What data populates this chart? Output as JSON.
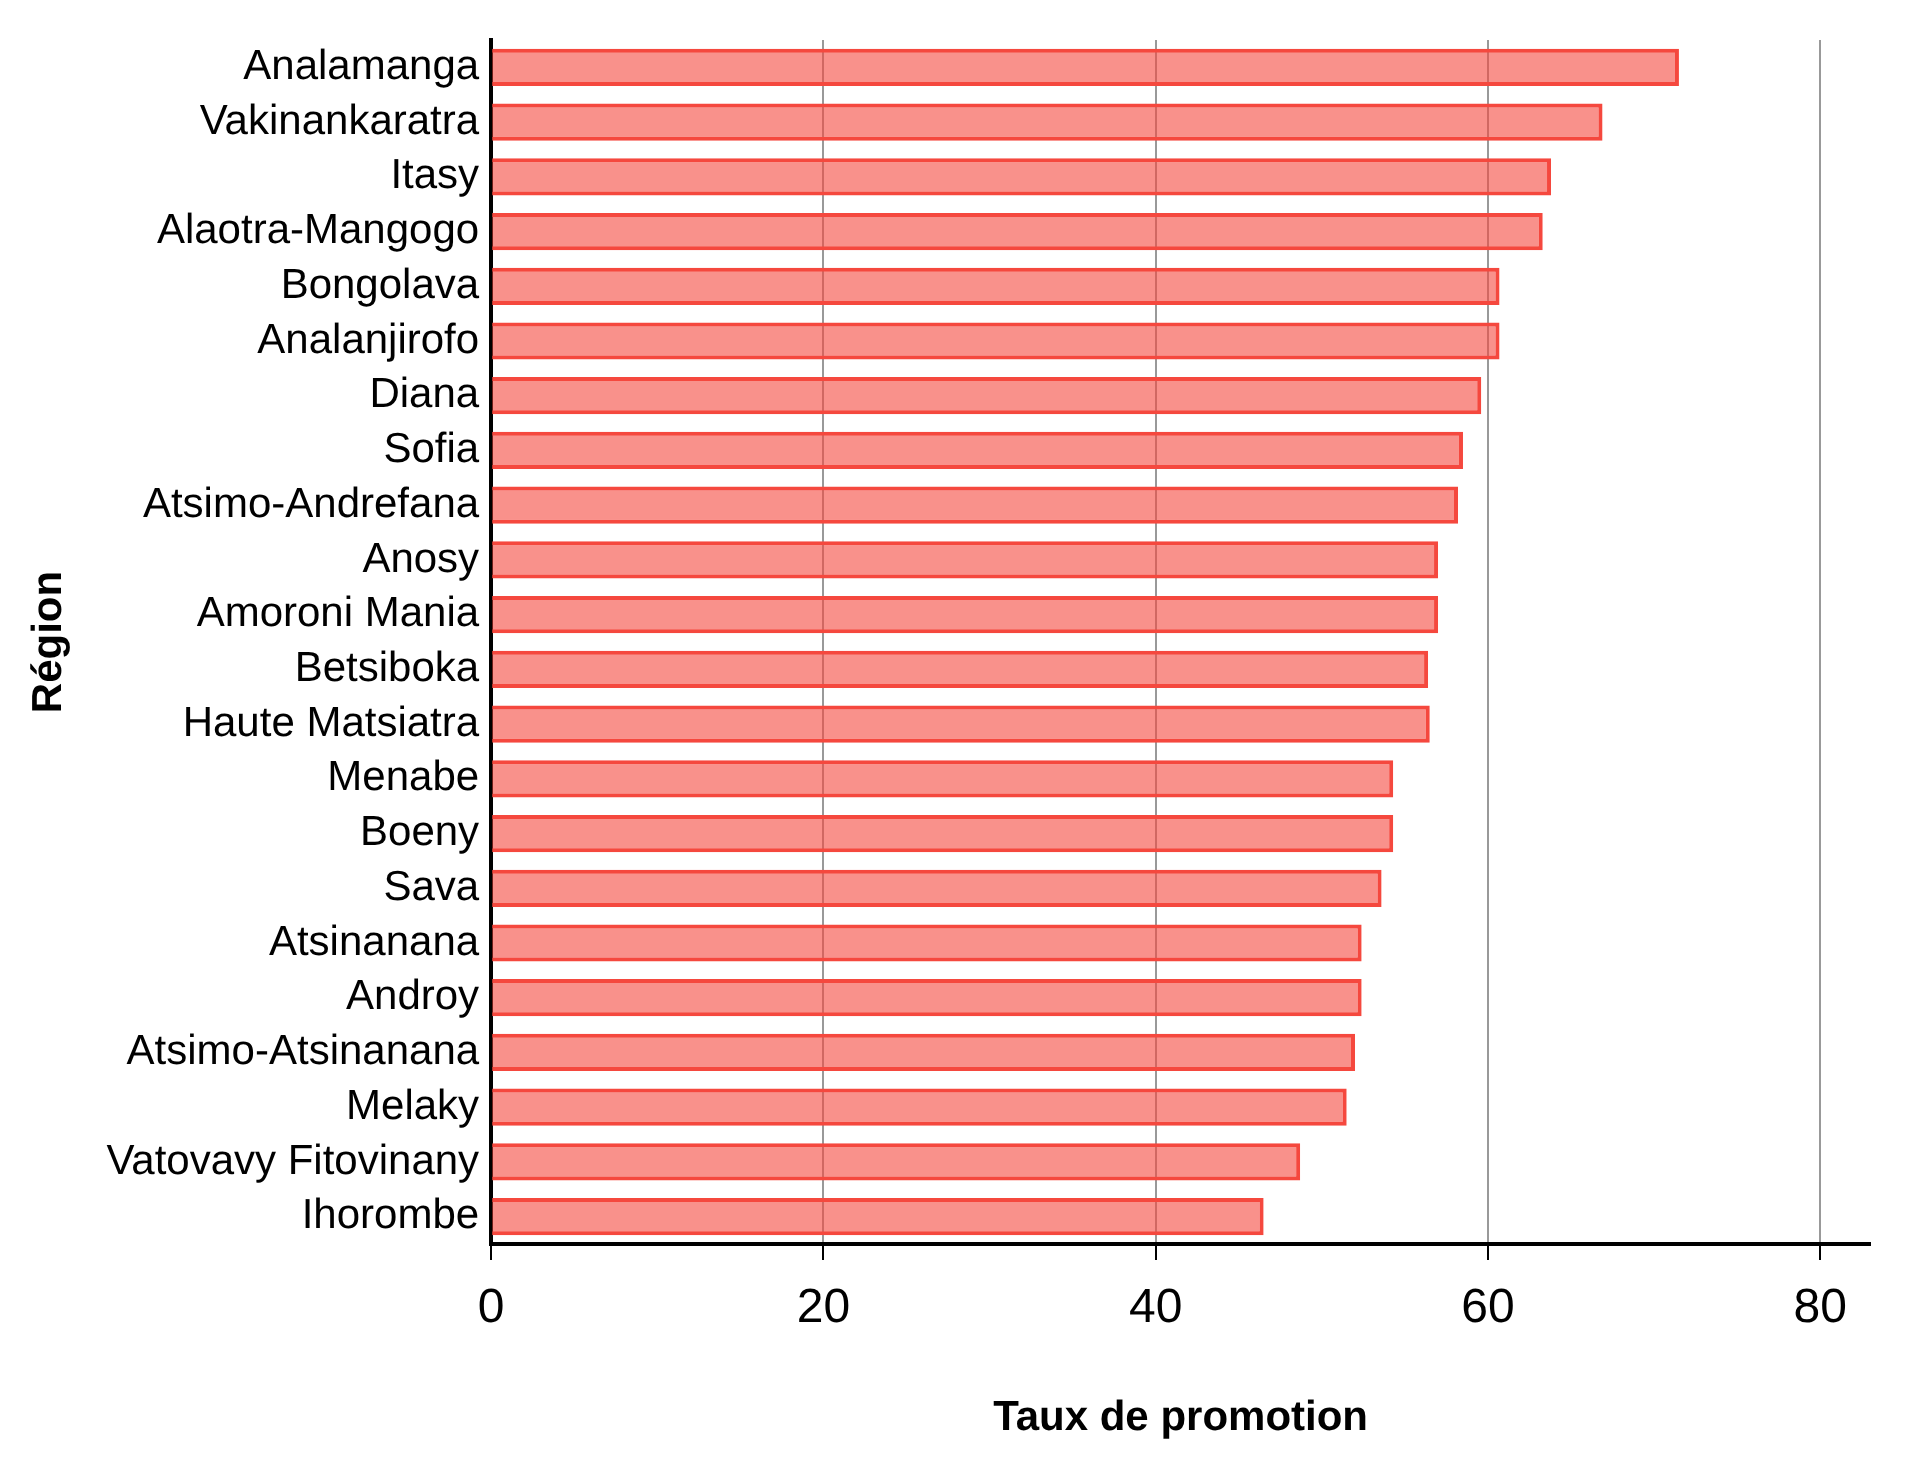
{
  "chart_data": {
    "type": "bar",
    "orientation": "horizontal",
    "xlabel": "Taux de promotion",
    "ylabel": "Région",
    "categories": [
      "Analamanga",
      "Vakinankaratra",
      "Itasy",
      "Alaotra-Mangogo",
      "Bongolava",
      "Analanjirofo",
      "Diana",
      "Sofia",
      "Atsimo-Andrefana",
      "Anosy",
      "Amoroni Mania",
      "Betsiboka",
      "Haute Matsiatra",
      "Menabe",
      "Boeny",
      "Sava",
      "Atsinanana",
      "Androy",
      "Atsimo-Atsinanana",
      "Melaky",
      "Vatovavy Fitovinany",
      "Ihorombe"
    ],
    "values": [
      71.5,
      66.9,
      63.8,
      63.3,
      60.7,
      60.7,
      59.6,
      58.5,
      58.2,
      57.0,
      57.0,
      56.4,
      56.5,
      54.3,
      54.3,
      53.6,
      52.4,
      52.4,
      52.0,
      51.5,
      48.7,
      46.5
    ],
    "color": "#f5483e",
    "xlim": [
      0,
      83
    ],
    "xticks": [
      0,
      20,
      40,
      60,
      80
    ],
    "grid": "x",
    "legend": false
  }
}
